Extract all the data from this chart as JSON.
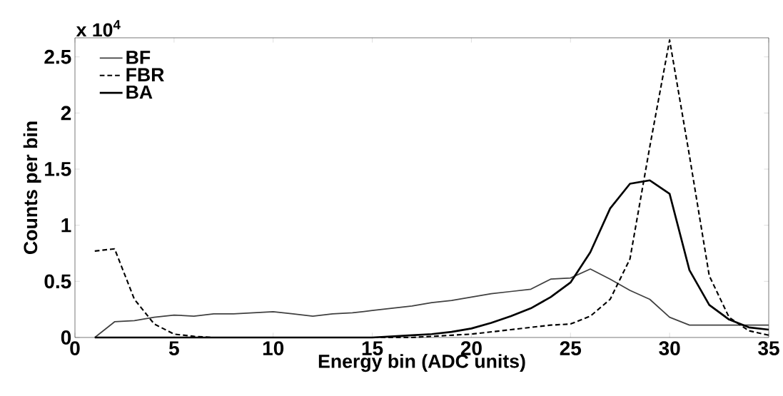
{
  "chart_data": {
    "type": "line",
    "xlabel": "Energy bin (ADC units)",
    "ylabel": "Counts per bin",
    "annotations": [
      "x 10$^{4}$"
    ],
    "x": [
      1,
      2,
      3,
      4,
      5,
      6,
      7,
      8,
      9,
      10,
      11,
      12,
      13,
      14,
      15,
      16,
      17,
      18,
      19,
      20,
      21,
      22,
      23,
      24,
      25,
      26,
      27,
      28,
      29,
      30,
      31,
      32,
      33,
      34,
      35
    ],
    "series": [
      {
        "name": "BF",
        "color": "#404040",
        "line_style": "solid",
        "values": [
          0,
          0.14,
          0.15,
          0.18,
          0.2,
          0.19,
          0.21,
          0.21,
          0.22,
          0.23,
          0.21,
          0.19,
          0.21,
          0.22,
          0.24,
          0.26,
          0.28,
          0.31,
          0.33,
          0.36,
          0.39,
          0.41,
          0.43,
          0.52,
          0.53,
          0.61,
          0.52,
          0.42,
          0.34,
          0.18,
          0.11,
          0.11,
          0.11,
          0.11,
          0.11
        ]
      },
      {
        "name": "FBR",
        "color": "#000000",
        "line_style": "dashed",
        "values": [
          0.77,
          0.79,
          0.34,
          0.12,
          0.03,
          0.01,
          0,
          0,
          0,
          0,
          0,
          0,
          0,
          0,
          0,
          0,
          0,
          0.01,
          0.02,
          0.03,
          0.05,
          0.07,
          0.09,
          0.11,
          0.12,
          0.19,
          0.34,
          0.7,
          1.7,
          2.65,
          1.62,
          0.55,
          0.18,
          0.06,
          0.02
        ]
      },
      {
        "name": "BA",
        "color": "#000000",
        "line_style": "solid",
        "values": [
          0,
          0,
          0,
          0,
          0,
          0,
          0,
          0,
          0,
          0,
          0,
          0,
          0,
          0,
          0,
          0.01,
          0.02,
          0.03,
          0.05,
          0.08,
          0.13,
          0.19,
          0.26,
          0.36,
          0.49,
          0.76,
          1.15,
          1.37,
          1.4,
          1.28,
          0.6,
          0.29,
          0.16,
          0.09,
          0.07
        ]
      }
    ],
    "xlim": [
      0,
      35
    ],
    "ylim": [
      0,
      2.67
    ],
    "xticks": [
      0,
      5,
      10,
      15,
      20,
      25,
      30,
      35
    ],
    "yticks": [
      0,
      0.5,
      1,
      1.5,
      2,
      2.5
    ],
    "grid": false,
    "legend": "top left",
    "marker": "none"
  }
}
